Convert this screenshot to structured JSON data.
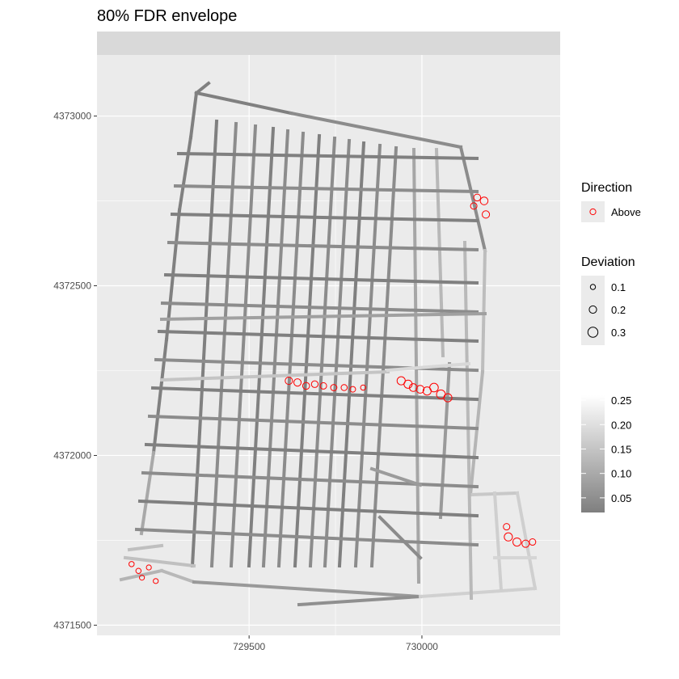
{
  "chart_data": {
    "type": "scatter",
    "title": "80% FDR envelope",
    "xlabel": "",
    "ylabel": "",
    "xlim": [
      729060,
      730400
    ],
    "ylim": [
      4371470,
      4373180
    ],
    "xticks": [
      729500,
      730000
    ],
    "xtick_labels": [
      "729500",
      "730000"
    ],
    "yticks": [
      4371500,
      4372000,
      4372500,
      4373000
    ],
    "ytick_labels": [
      "4371500",
      "4372000",
      "4372500",
      "4373000"
    ],
    "grid": true,
    "facet_strip": true,
    "legends": {
      "direction": {
        "title": "Direction",
        "entries": [
          {
            "label": "Above",
            "color": "#ff0000"
          }
        ]
      },
      "deviation": {
        "title": "Deviation",
        "entries": [
          {
            "label": "0.1",
            "value": 0.1
          },
          {
            "label": "0.2",
            "value": 0.2
          },
          {
            "label": "0.3",
            "value": 0.3
          }
        ]
      },
      "colorbar": {
        "ticks": [
          {
            "label": "0.25",
            "value": 0.25
          },
          {
            "label": "0.20",
            "value": 0.2
          },
          {
            "label": "0.15",
            "value": 0.15
          },
          {
            "label": "0.10",
            "value": 0.1
          },
          {
            "label": "0.05",
            "value": 0.05
          }
        ],
        "range": [
          0.02,
          0.26
        ],
        "low_color": "#7f7f7f",
        "high_color": "#ffffff"
      }
    },
    "colors": {
      "panel_bg": "#ebebeb",
      "strip_bg": "#d9d9d9",
      "grid": "#ffffff",
      "point_stroke": "#ff0000"
    },
    "series": [
      {
        "name": "Above",
        "points": [
          {
            "x": 729940,
            "y": 4372220,
            "d": 0.22
          },
          {
            "x": 729960,
            "y": 4372210,
            "d": 0.22
          },
          {
            "x": 729975,
            "y": 4372200,
            "d": 0.2
          },
          {
            "x": 729995,
            "y": 4372195,
            "d": 0.2
          },
          {
            "x": 730015,
            "y": 4372190,
            "d": 0.22
          },
          {
            "x": 730035,
            "y": 4372200,
            "d": 0.24
          },
          {
            "x": 730055,
            "y": 4372180,
            "d": 0.25
          },
          {
            "x": 730075,
            "y": 4372170,
            "d": 0.22
          },
          {
            "x": 729615,
            "y": 4372220,
            "d": 0.18
          },
          {
            "x": 729640,
            "y": 4372215,
            "d": 0.18
          },
          {
            "x": 729665,
            "y": 4372205,
            "d": 0.16
          },
          {
            "x": 729690,
            "y": 4372210,
            "d": 0.15
          },
          {
            "x": 729715,
            "y": 4372205,
            "d": 0.14
          },
          {
            "x": 729745,
            "y": 4372200,
            "d": 0.13
          },
          {
            "x": 729775,
            "y": 4372200,
            "d": 0.12
          },
          {
            "x": 729800,
            "y": 4372195,
            "d": 0.1
          },
          {
            "x": 729830,
            "y": 4372200,
            "d": 0.08
          },
          {
            "x": 730180,
            "y": 4372750,
            "d": 0.2
          },
          {
            "x": 730160,
            "y": 4372760,
            "d": 0.16
          },
          {
            "x": 730150,
            "y": 4372735,
            "d": 0.14
          },
          {
            "x": 730185,
            "y": 4372710,
            "d": 0.18
          },
          {
            "x": 730250,
            "y": 4371760,
            "d": 0.22
          },
          {
            "x": 730275,
            "y": 4371745,
            "d": 0.22
          },
          {
            "x": 730300,
            "y": 4371740,
            "d": 0.18
          },
          {
            "x": 730320,
            "y": 4371745,
            "d": 0.14
          },
          {
            "x": 730245,
            "y": 4371790,
            "d": 0.14
          },
          {
            "x": 729160,
            "y": 4371680,
            "d": 0.08
          },
          {
            "x": 729180,
            "y": 4371660,
            "d": 0.08
          },
          {
            "x": 729210,
            "y": 4371670,
            "d": 0.07
          },
          {
            "x": 729190,
            "y": 4371640,
            "d": 0.07
          },
          {
            "x": 729230,
            "y": 4371630,
            "d": 0.07
          }
        ]
      }
    ]
  }
}
